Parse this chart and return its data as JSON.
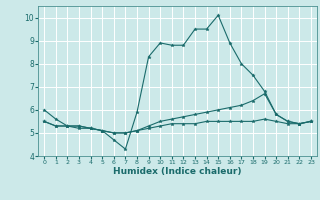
{
  "title": "",
  "xlabel": "Humidex (Indice chaleur)",
  "xlim": [
    -0.5,
    23.5
  ],
  "ylim": [
    4,
    10.5
  ],
  "yticks": [
    4,
    5,
    6,
    7,
    8,
    9,
    10
  ],
  "xticks": [
    0,
    1,
    2,
    3,
    4,
    5,
    6,
    7,
    8,
    9,
    10,
    11,
    12,
    13,
    14,
    15,
    16,
    17,
    18,
    19,
    20,
    21,
    22,
    23
  ],
  "background_color": "#cce9e9",
  "grid_color": "#ffffff",
  "line_color": "#1a6b6b",
  "spine_color": "#4a9090",
  "lines": [
    {
      "x": [
        0,
        1,
        2,
        3,
        4,
        5,
        6,
        7,
        8,
        9,
        10,
        11,
        12,
        13,
        14,
        15,
        16,
        17,
        18,
        19,
        20,
        21,
        22,
        23
      ],
      "y": [
        6.0,
        5.6,
        5.3,
        5.3,
        5.2,
        5.1,
        4.7,
        4.3,
        5.9,
        8.3,
        8.9,
        8.8,
        8.8,
        9.5,
        9.5,
        10.1,
        8.9,
        8.0,
        7.5,
        6.8,
        5.8,
        5.5,
        5.4,
        5.5
      ]
    },
    {
      "x": [
        0,
        1,
        2,
        3,
        4,
        5,
        6,
        7,
        8,
        9,
        10,
        11,
        12,
        13,
        14,
        15,
        16,
        17,
        18,
        19,
        20,
        21,
        22,
        23
      ],
      "y": [
        5.5,
        5.3,
        5.3,
        5.3,
        5.2,
        5.1,
        5.0,
        5.0,
        5.1,
        5.3,
        5.5,
        5.6,
        5.7,
        5.8,
        5.9,
        6.0,
        6.1,
        6.2,
        6.4,
        6.7,
        5.8,
        5.5,
        5.4,
        5.5
      ]
    },
    {
      "x": [
        0,
        1,
        2,
        3,
        4,
        5,
        6,
        7,
        8,
        9,
        10,
        11,
        12,
        13,
        14,
        15,
        16,
        17,
        18,
        19,
        20,
        21,
        22,
        23
      ],
      "y": [
        5.5,
        5.3,
        5.3,
        5.2,
        5.2,
        5.1,
        5.0,
        5.0,
        5.1,
        5.2,
        5.3,
        5.4,
        5.4,
        5.4,
        5.5,
        5.5,
        5.5,
        5.5,
        5.5,
        5.6,
        5.5,
        5.4,
        5.4,
        5.5
      ]
    }
  ]
}
